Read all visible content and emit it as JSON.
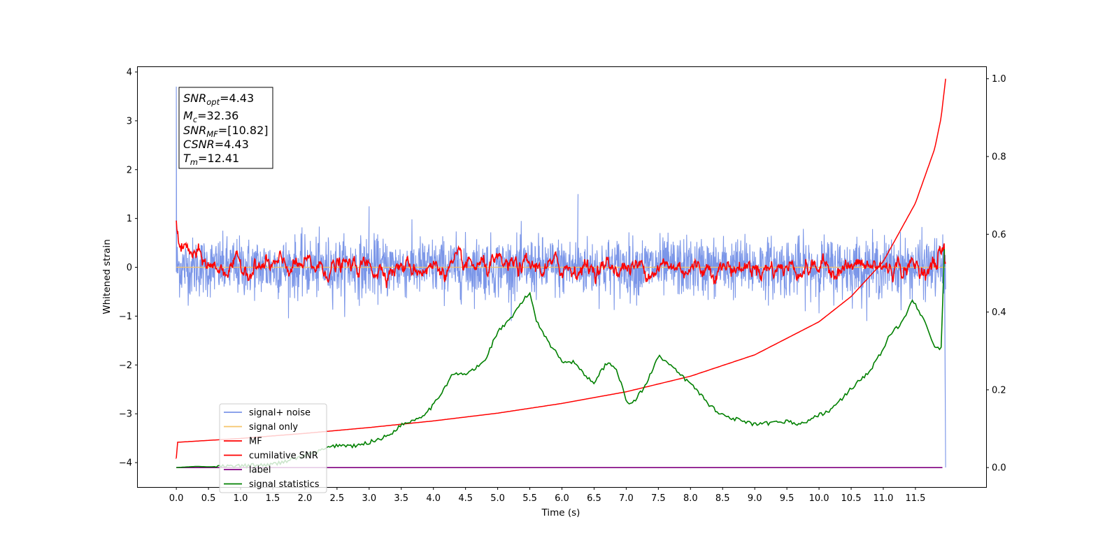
{
  "chart_data": {
    "type": "line",
    "xlabel": "Time (s)",
    "ylabel": "Whitened strain",
    "xlim": [
      -0.6,
      12.6
    ],
    "ylim_left": [
      -4.5,
      4.1
    ],
    "ylim_right": [
      -0.05,
      1.03
    ],
    "x_ticks": [
      "0.0",
      "0.5",
      "1.0",
      "1.5",
      "2.0",
      "2.5",
      "3.0",
      "3.5",
      "4.0",
      "4.5",
      "5.0",
      "5.5",
      "6.0",
      "6.5",
      "7.0",
      "7.5",
      "8.0",
      "8.5",
      "9.0",
      "9.5",
      "10.0",
      "10.5",
      "11.0",
      "11.5"
    ],
    "y_ticks_left": [
      "4",
      "3",
      "2",
      "1",
      "0",
      "−1",
      "−2",
      "−3",
      "−4"
    ],
    "y_ticks_left_values": [
      4,
      3,
      2,
      1,
      0,
      -1,
      -2,
      -3,
      -4
    ],
    "y_ticks_right": [
      "1.0",
      "0.8",
      "0.6",
      "0.4",
      "0.2",
      "0.0"
    ],
    "y_ticks_right_values": [
      1.0,
      0.8,
      0.6,
      0.4,
      0.2,
      0.0
    ],
    "grid": false,
    "legend_position": "lower-left",
    "colors": {
      "signal_noise": "#7b96e8",
      "signal_only": "#f5c46a",
      "mf": "#ff0000",
      "cumulative_snr": "#ff0000",
      "label": "#800080",
      "signal_statistics": "#008000"
    },
    "series": [
      {
        "name": "signal+ noise",
        "axis": "left",
        "noise_std": 0.3,
        "spikes": [
          {
            "x": 0.0,
            "y": 3.7
          },
          {
            "x": 0.0,
            "y": 2.1
          },
          {
            "x": 6.25,
            "y": 1.5
          },
          {
            "x": 3.0,
            "y": 1.25
          },
          {
            "x": 11.97,
            "y": -4.1
          }
        ]
      },
      {
        "name": "signal only",
        "axis": "left",
        "x": [
          0.0,
          11.97
        ],
        "y": [
          0.0,
          0.0
        ]
      },
      {
        "name": "MF",
        "axis": "left",
        "noise_std": 0.06,
        "x_start": [
          0.0,
          0.05,
          0.15,
          0.3,
          0.5
        ],
        "y_start": [
          1.0,
          0.45,
          0.35,
          0.2,
          0.05
        ]
      },
      {
        "name": "cumilative SNR",
        "axis": "right",
        "x": [
          0.0,
          0.01,
          1.0,
          2.0,
          3.0,
          4.0,
          5.0,
          6.0,
          7.0,
          8.0,
          9.0,
          10.0,
          10.5,
          11.0,
          11.5,
          11.8,
          11.9,
          11.97
        ],
        "y": [
          0.025,
          0.065,
          0.075,
          0.088,
          0.103,
          0.12,
          0.14,
          0.165,
          0.195,
          0.235,
          0.29,
          0.375,
          0.44,
          0.53,
          0.68,
          0.82,
          0.9,
          1.0
        ]
      },
      {
        "name": "label",
        "axis": "right",
        "x": [
          0.0,
          11.92
        ],
        "y": [
          0.0,
          0.0
        ]
      },
      {
        "name": "signal statistics",
        "axis": "right",
        "x": [
          0.0,
          0.3,
          0.5,
          1.0,
          1.5,
          2.0,
          2.5,
          2.8,
          3.0,
          3.3,
          3.5,
          3.8,
          4.0,
          4.15,
          4.3,
          4.5,
          4.7,
          4.8,
          5.0,
          5.2,
          5.35,
          5.5,
          5.6,
          5.8,
          6.0,
          6.2,
          6.4,
          6.5,
          6.7,
          6.85,
          7.0,
          7.1,
          7.3,
          7.5,
          7.6,
          7.9,
          8.1,
          8.3,
          8.5,
          8.8,
          9.0,
          9.3,
          9.5,
          9.7,
          10.0,
          10.2,
          10.4,
          10.6,
          10.8,
          11.0,
          11.1,
          11.3,
          11.45,
          11.6,
          11.8,
          11.9,
          11.95
        ],
        "y": [
          0.0,
          0.003,
          0.002,
          0.004,
          0.008,
          0.03,
          0.058,
          0.055,
          0.065,
          0.082,
          0.11,
          0.13,
          0.16,
          0.2,
          0.24,
          0.24,
          0.26,
          0.275,
          0.35,
          0.38,
          0.42,
          0.45,
          0.38,
          0.32,
          0.275,
          0.27,
          0.23,
          0.22,
          0.27,
          0.255,
          0.17,
          0.165,
          0.21,
          0.29,
          0.275,
          0.23,
          0.2,
          0.16,
          0.135,
          0.12,
          0.11,
          0.115,
          0.12,
          0.11,
          0.135,
          0.15,
          0.185,
          0.22,
          0.25,
          0.305,
          0.34,
          0.375,
          0.435,
          0.39,
          0.31,
          0.305,
          0.56
        ]
      }
    ]
  },
  "annotation": {
    "snr_opt": {
      "base": "SNR",
      "sub": "opt",
      "value": "=4.43"
    },
    "mc": {
      "base": "M",
      "sub": "c",
      "value": "=32.36"
    },
    "snr_mf": {
      "base": "SNR",
      "sub": "MF",
      "value": "=[10.82]"
    },
    "csnr": {
      "base": "CSNR",
      "value": "=4.43"
    },
    "tm": {
      "base": "T",
      "sub": "m",
      "value": "=12.41"
    }
  }
}
